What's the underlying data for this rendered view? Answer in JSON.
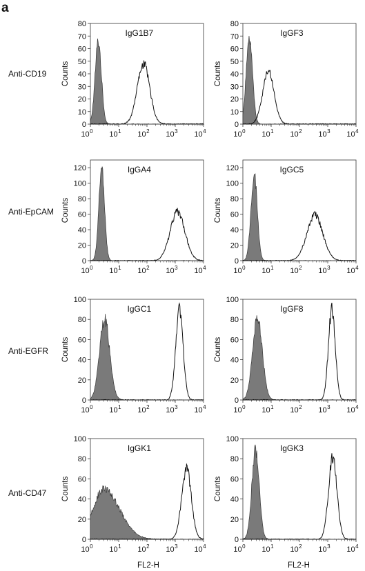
{
  "figure": {
    "panel_letter": "a",
    "ylabel": "Counts",
    "xlabel": "FL2-H",
    "row_labels": [
      "Anti-CD19",
      "Anti-EpCAM",
      "Anti-EGFR",
      "Anti-CD47"
    ],
    "colors": {
      "control_fill": "#7a7a7a",
      "line": "#111111",
      "frame": "#333333"
    }
  },
  "chart_data": [
    {
      "type": "area",
      "row": 1,
      "col": 1,
      "clone": "IgG1B7",
      "marker": "Anti-CD19",
      "xscale": "log",
      "xlim": [
        1,
        10000
      ],
      "ylim": [
        0,
        80
      ],
      "yticks": [
        0,
        10,
        20,
        30,
        40,
        50,
        60,
        70,
        80
      ],
      "series": [
        {
          "role": "filled-control",
          "peak_x": 1.9,
          "peak_y": 66,
          "width": 0.11
        },
        {
          "role": "open",
          "peak_x": 75,
          "peak_y": 48,
          "width": 0.22
        }
      ]
    },
    {
      "type": "area",
      "row": 1,
      "col": 2,
      "clone": "IgGF3",
      "marker": "Anti-CD19",
      "xscale": "log",
      "xlim": [
        1,
        10000
      ],
      "ylim": [
        0,
        80
      ],
      "yticks": [
        0,
        10,
        20,
        30,
        40,
        50,
        60,
        70,
        80
      ],
      "series": [
        {
          "role": "filled-control",
          "peak_x": 1.7,
          "peak_y": 70,
          "width": 0.11
        },
        {
          "role": "open",
          "peak_x": 8,
          "peak_y": 42,
          "width": 0.2
        }
      ]
    },
    {
      "type": "area",
      "row": 2,
      "col": 1,
      "clone": "IgGA4",
      "marker": "Anti-EpCAM",
      "xscale": "log",
      "xlim": [
        1,
        10000
      ],
      "ylim": [
        0,
        130
      ],
      "yticks": [
        0,
        20,
        40,
        60,
        80,
        100,
        120
      ],
      "series": [
        {
          "role": "filled-control",
          "peak_x": 2.5,
          "peak_y": 120,
          "width": 0.1
        },
        {
          "role": "open",
          "peak_x": 1200,
          "peak_y": 63,
          "width": 0.26
        }
      ]
    },
    {
      "type": "area",
      "row": 2,
      "col": 2,
      "clone": "IgGC5",
      "marker": "Anti-EpCAM",
      "xscale": "log",
      "xlim": [
        1,
        10000
      ],
      "ylim": [
        0,
        130
      ],
      "yticks": [
        0,
        20,
        40,
        60,
        80,
        100,
        120
      ],
      "series": [
        {
          "role": "filled-control",
          "peak_x": 2.5,
          "peak_y": 112,
          "width": 0.11
        },
        {
          "role": "open",
          "peak_x": 350,
          "peak_y": 59,
          "width": 0.28
        }
      ]
    },
    {
      "type": "area",
      "row": 3,
      "col": 1,
      "clone": "IgGC1",
      "marker": "Anti-EGFR",
      "xscale": "log",
      "xlim": [
        1,
        10000
      ],
      "ylim": [
        0,
        100
      ],
      "yticks": [
        0,
        20,
        40,
        60,
        80,
        100
      ],
      "series": [
        {
          "role": "filled-control",
          "peak_x": 3.2,
          "peak_y": 80,
          "width": 0.18
        },
        {
          "role": "open",
          "peak_x": 1400,
          "peak_y": 91,
          "width": 0.13
        }
      ]
    },
    {
      "type": "area",
      "row": 3,
      "col": 2,
      "clone": "IgGF8",
      "marker": "Anti-EGFR",
      "xscale": "log",
      "xlim": [
        1,
        10000
      ],
      "ylim": [
        0,
        100
      ],
      "yticks": [
        0,
        20,
        40,
        60,
        80,
        100
      ],
      "series": [
        {
          "role": "filled-control",
          "peak_x": 3.3,
          "peak_y": 81,
          "width": 0.17
        },
        {
          "role": "open",
          "peak_x": 1400,
          "peak_y": 91,
          "width": 0.12
        }
      ]
    },
    {
      "type": "area",
      "row": 4,
      "col": 1,
      "clone": "IgGK1",
      "marker": "Anti-CD47",
      "xscale": "log",
      "xlim": [
        1,
        10000
      ],
      "ylim": [
        0,
        100
      ],
      "yticks": [
        0,
        20,
        40,
        60,
        80,
        100
      ],
      "series": [
        {
          "role": "filled-control",
          "peak_x": 3.0,
          "peak_y": 50,
          "width": 0.38,
          "tail": 0.55
        },
        {
          "role": "open",
          "peak_x": 2500,
          "peak_y": 70,
          "width": 0.17
        }
      ]
    },
    {
      "type": "area",
      "row": 4,
      "col": 2,
      "clone": "IgGK3",
      "marker": "Anti-CD47",
      "xscale": "log",
      "xlim": [
        1,
        10000
      ],
      "ylim": [
        0,
        100
      ],
      "yticks": [
        0,
        20,
        40,
        60,
        80,
        100
      ],
      "series": [
        {
          "role": "filled-control",
          "peak_x": 2.8,
          "peak_y": 88,
          "width": 0.13
        },
        {
          "role": "open",
          "peak_x": 1500,
          "peak_y": 81,
          "width": 0.15
        }
      ]
    }
  ]
}
